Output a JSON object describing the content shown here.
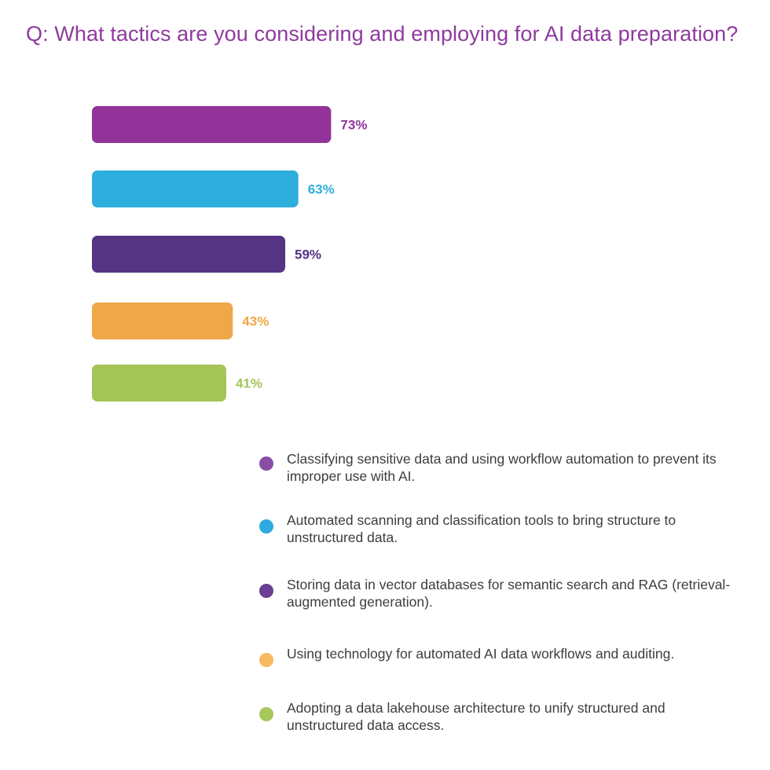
{
  "title": "Q: What tactics are you considering and employing for AI data preparation?",
  "chart_data": {
    "type": "bar",
    "orientation": "horizontal",
    "title": "Q: What tactics are you considering and employing for AI data preparation?",
    "xlabel": "",
    "ylabel": "",
    "grid": false,
    "legend_placement": "bottom-right",
    "xlim": [
      0,
      100
    ],
    "unit": "%",
    "categories": [
      "Classifying sensitive data and using workflow automation to prevent its improper use with AI.",
      "Automated scanning and classification tools to bring structure to unstructured data.",
      "Storing data in vector databases for semantic search and RAG (retrieval-augmented generation).",
      "Using technology for automated AI data workflows and auditing.",
      "Adopting a data lakehouse architecture to unify structured and unstructured data access."
    ],
    "values": [
      73,
      63,
      59,
      43,
      41
    ],
    "value_labels": [
      "73%",
      "63%",
      "59%",
      "43%",
      "41%"
    ],
    "colors": [
      "#93339A",
      "#2EAEDC",
      "#553483",
      "#EFA747",
      "#A5C457"
    ],
    "legend_dot_colors": [
      "#8A4DA6",
      "#2EA9DF",
      "#6A3E91",
      "#F7B860",
      "#A6C75A"
    ]
  }
}
